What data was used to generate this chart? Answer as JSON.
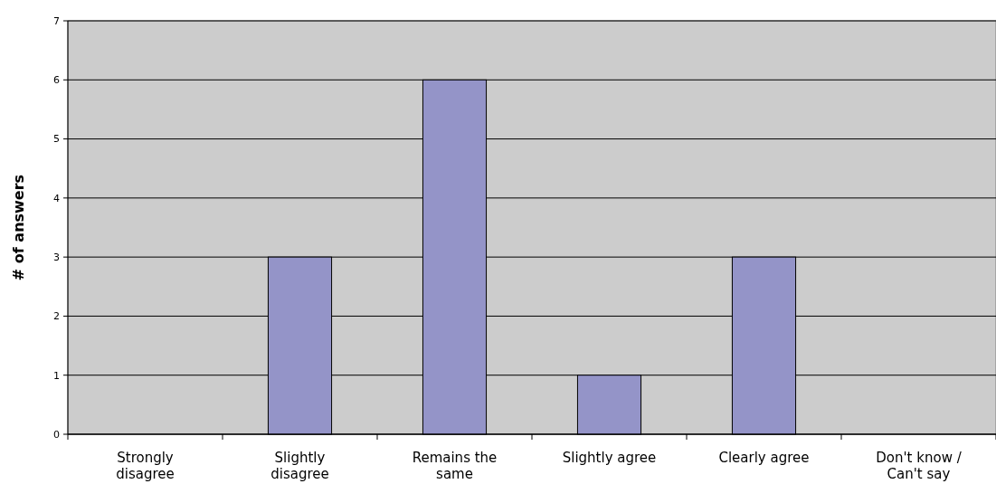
{
  "chart_data": {
    "type": "bar",
    "ylabel": "# of answers",
    "categories": [
      "Strongly disagree",
      "Slightly disagree",
      "Remains the same",
      "Slightly agree",
      "Clearly agree",
      "Don't know / Can't say"
    ],
    "values": [
      0,
      3,
      6,
      1,
      3,
      0
    ],
    "color": "#9494c8",
    "ylim": [
      0,
      7
    ],
    "yticks": [
      0,
      1,
      2,
      3,
      4,
      5,
      6,
      7
    ],
    "grid": "y"
  }
}
